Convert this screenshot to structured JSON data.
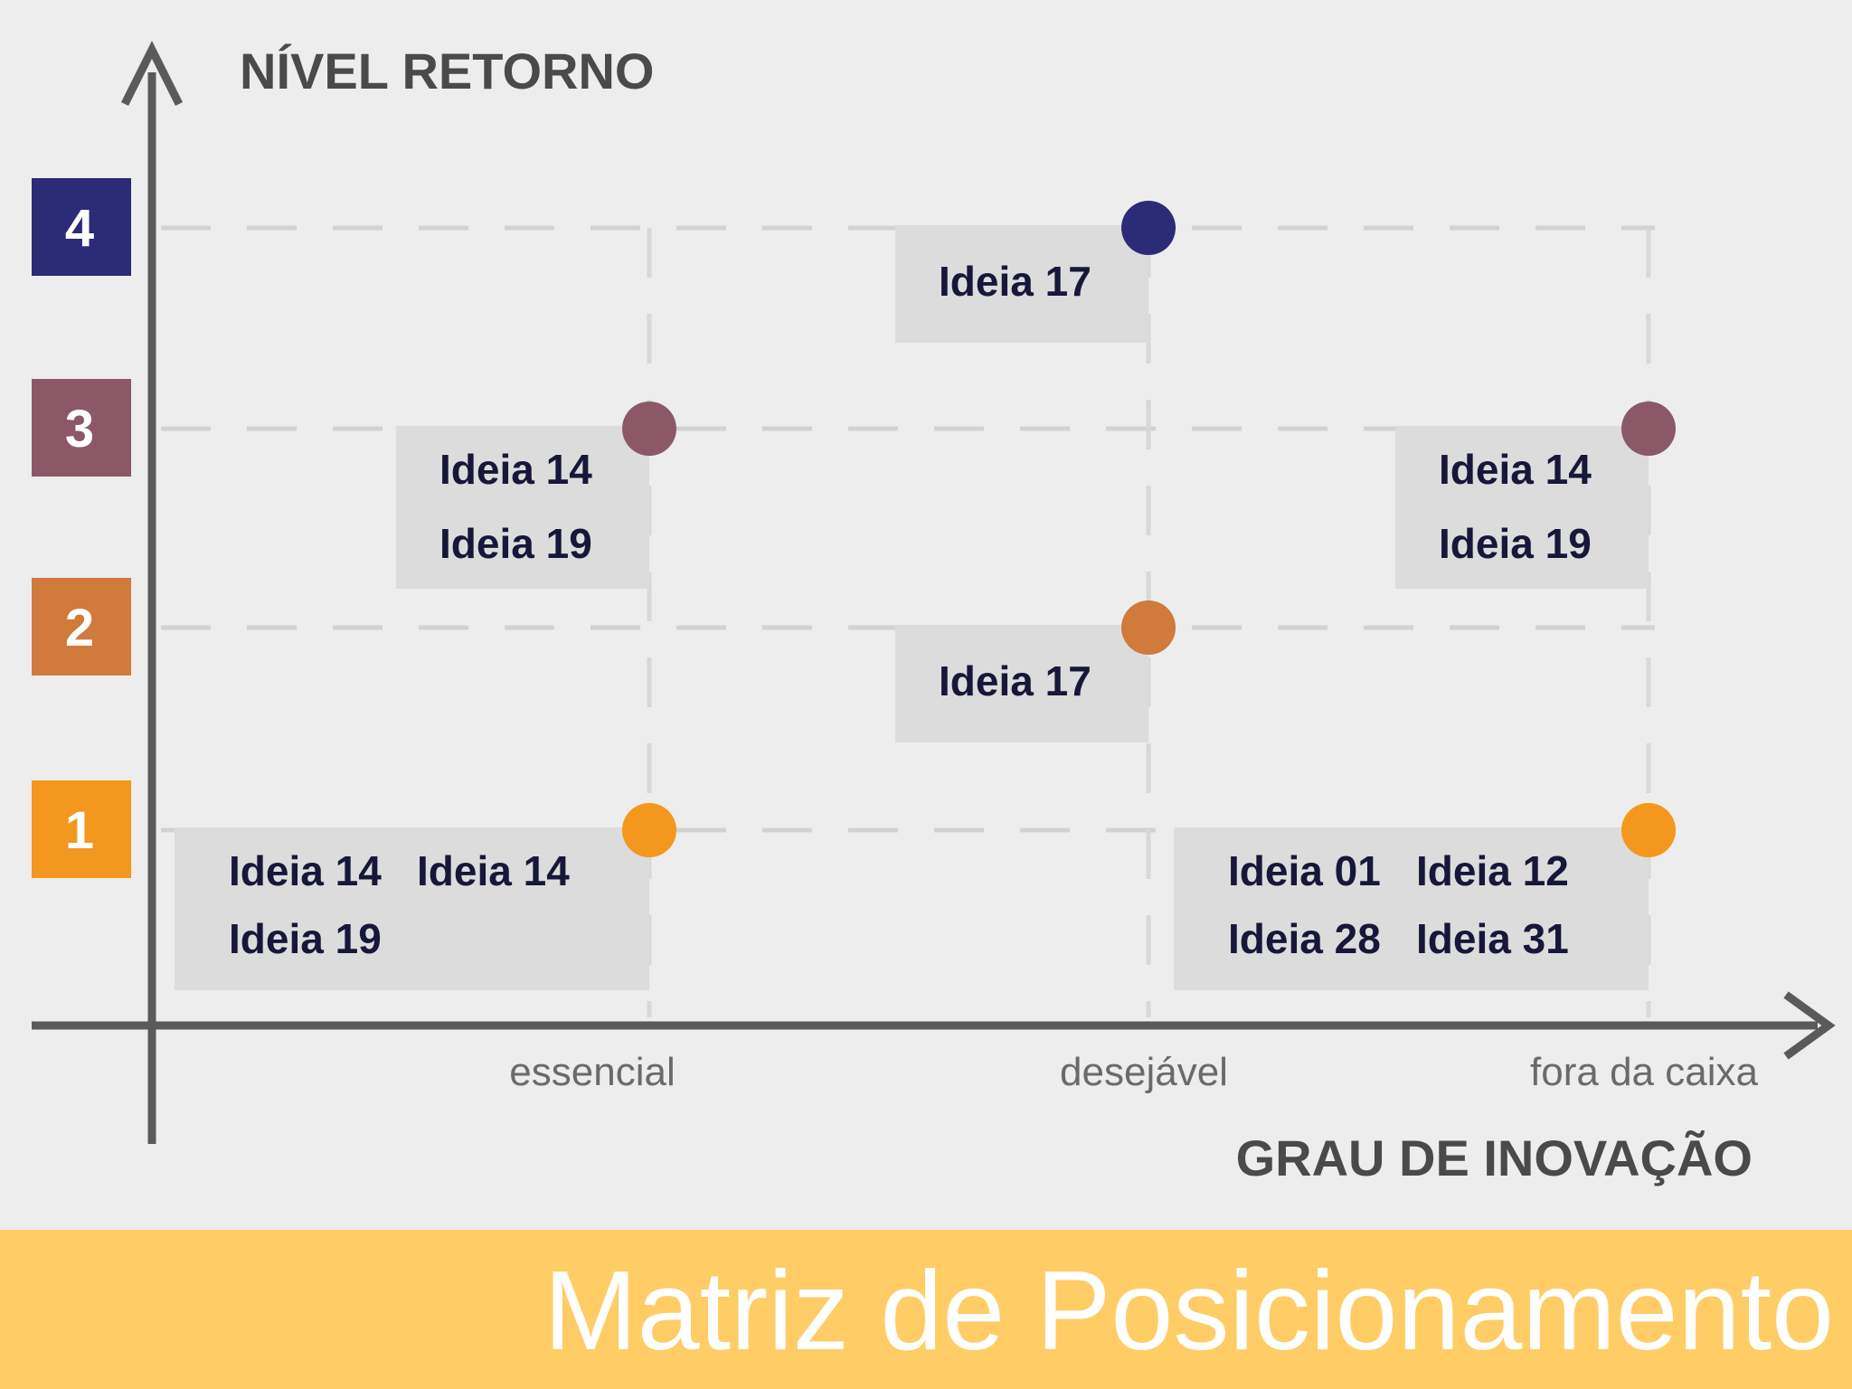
{
  "chart_data": {
    "type": "scatter",
    "ylabel": "NÍVEL RETORNO",
    "xlabel": "GRAU DE INOVAÇÃO",
    "x_categories": [
      "essencial",
      "desejável",
      "fora da caixa"
    ],
    "y_levels": [
      {
        "value": 4,
        "label": "4",
        "color": "#2b2b78"
      },
      {
        "value": 3,
        "label": "3",
        "color": "#8c5868"
      },
      {
        "value": 2,
        "label": "2",
        "color": "#d07a3c"
      },
      {
        "value": 1,
        "label": "1",
        "color": "#f3971f"
      }
    ],
    "points": [
      {
        "x": "desejável",
        "y": 4,
        "ideas": [
          "Ideia 17"
        ]
      },
      {
        "x": "essencial",
        "y": 3,
        "ideas": [
          "Ideia 14",
          "Ideia 19"
        ]
      },
      {
        "x": "fora da caixa",
        "y": 3,
        "ideas": [
          "Ideia 14",
          "Ideia 19"
        ]
      },
      {
        "x": "desejável",
        "y": 2,
        "ideas": [
          "Ideia 17"
        ]
      },
      {
        "x": "essencial",
        "y": 1,
        "ideas": [
          "Ideia 14",
          "Ideia 14",
          "Ideia 19"
        ]
      },
      {
        "x": "fora da caixa",
        "y": 1,
        "ideas": [
          "Ideia 01",
          "Ideia 12",
          "Ideia 28",
          "Ideia 31"
        ]
      }
    ],
    "grid": true
  },
  "footer": {
    "title": "Matriz de Posicionamento",
    "background": "#ffcc66"
  }
}
